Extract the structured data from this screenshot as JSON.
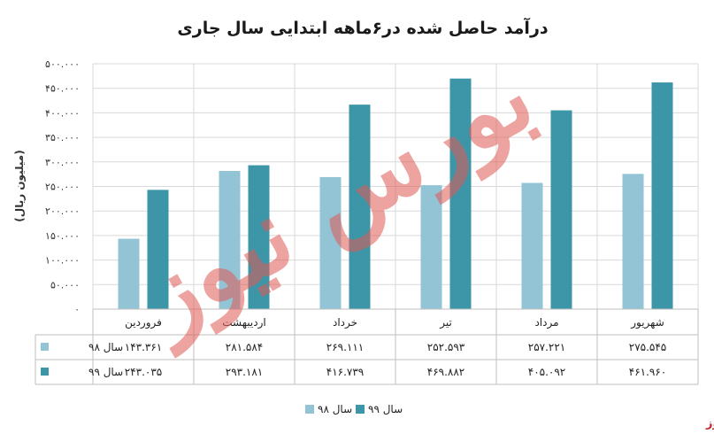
{
  "chart_data": {
    "type": "bar",
    "title": "درآمد حاصل شده در۶ماهه ابتدایی سال جاری",
    "ylabel": "(میلیون ریال)",
    "ylim": [
      0,
      500000
    ],
    "yticks": [
      0,
      50000,
      100000,
      150000,
      200000,
      250000,
      300000,
      350000,
      400000,
      450000,
      500000
    ],
    "ytick_labels": [
      "۰",
      "۵۰.۰۰۰",
      "۱۰۰.۰۰۰",
      "۱۵۰.۰۰۰",
      "۲۰۰.۰۰۰",
      "۲۵۰.۰۰۰",
      "۳۰۰.۰۰۰",
      "۳۵۰.۰۰۰",
      "۴۰۰.۰۰۰",
      "۴۵۰.۰۰۰",
      "۵۰۰.۰۰۰"
    ],
    "categories": [
      "فروردین",
      "اردیبهشت",
      "خرداد",
      "تیر",
      "مرداد",
      "شهریور"
    ],
    "series": [
      {
        "name": "سال ۹۸",
        "color": "#93c4d6",
        "values": [
          143361,
          281584,
          269111,
          252593,
          257221,
          275545
        ],
        "value_labels": [
          "۱۴۳.۳۶۱",
          "۲۸۱.۵۸۴",
          "۲۶۹.۱۱۱",
          "۲۵۲.۵۹۳",
          "۲۵۷.۲۲۱",
          "۲۷۵.۵۴۵"
        ]
      },
      {
        "name": "سال ۹۹",
        "color": "#3d95a8",
        "values": [
          243035,
          293181,
          416739,
          469882,
          405092,
          461960
        ],
        "value_labels": [
          "۲۴۳.۰۳۵",
          "۲۹۳.۱۸۱",
          "۴۱۶.۷۳۹",
          "۴۶۹.۸۸۲",
          "۴۰۵.۰۹۲",
          "۴۶۱.۹۶۰"
        ]
      }
    ],
    "grid": true,
    "legend": "bottom",
    "data_table": true
  },
  "watermark": "بورس نیوز",
  "brand": "بورس نیوز"
}
